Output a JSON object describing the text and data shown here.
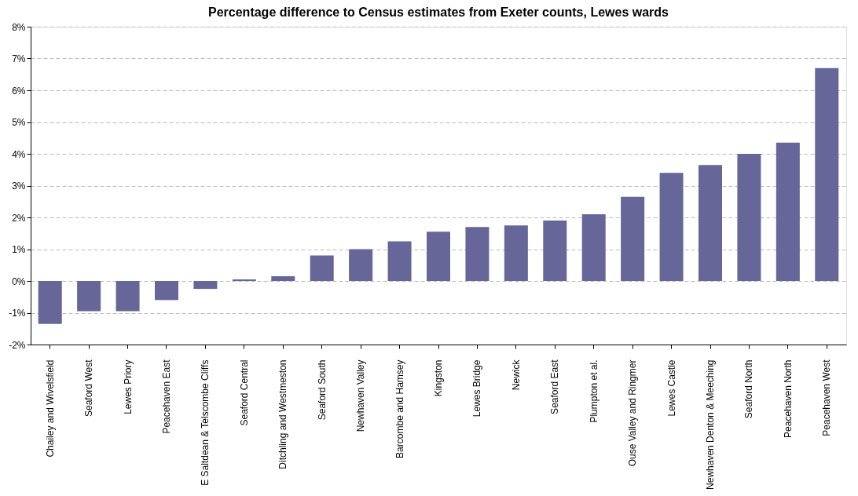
{
  "chart_data": {
    "type": "bar",
    "title": "Percentage difference to Census estimates from Exeter counts, Lewes wards",
    "categories": [
      "Chailey and Wivelsfield",
      "Seaford West",
      "Lewes Priory",
      "Peacehaven East",
      "E Saltdean & Telscombe Cliffs",
      "Seaford Central",
      "Ditchling and Westmeston",
      "Seaford South",
      "Newhaven Valley",
      "Barcombe and Hamsey",
      "Kingston",
      "Lewes Bridge",
      "Newick",
      "Seaford East",
      "Plumpton et al.",
      "Ouse Valley and Ringmer",
      "Lewes Castle",
      "Newhaven Denton & Meeching",
      "Seaford North",
      "Peacehaven North",
      "Peacehaven West"
    ],
    "series": [
      {
        "color": "#666699",
        "values": [
          -1.35,
          -0.95,
          -0.95,
          -0.6,
          -0.25,
          0.05,
          0.15,
          0.8,
          1.0,
          1.25,
          1.55,
          1.7,
          1.75,
          1.9,
          2.1,
          2.65,
          3.4,
          3.65,
          4.0,
          4.35,
          6.7
        ]
      }
    ],
    "ylim": [
      -2,
      8
    ],
    "yticks": [
      {
        "value": -2,
        "label": "-2%"
      },
      {
        "value": -1,
        "label": "-1%"
      },
      {
        "value": 0,
        "label": "0%"
      },
      {
        "value": 1,
        "label": "1%"
      },
      {
        "value": 2,
        "label": "2%"
      },
      {
        "value": 3,
        "label": "3%"
      },
      {
        "value": 4,
        "label": "4%"
      },
      {
        "value": 5,
        "label": "5%"
      },
      {
        "value": 6,
        "label": "6%"
      },
      {
        "value": 7,
        "label": "7%"
      },
      {
        "value": 8,
        "label": "8%"
      }
    ],
    "grid": "y",
    "legend": false
  }
}
